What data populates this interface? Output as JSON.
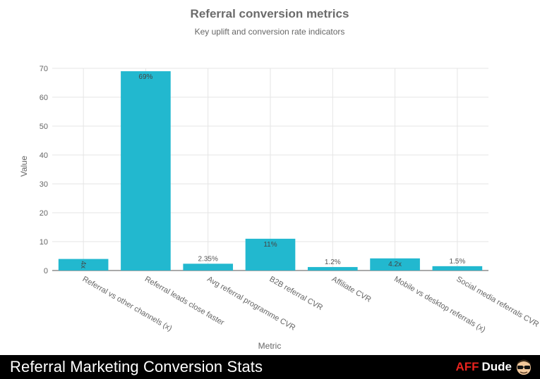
{
  "chart_data": {
    "type": "bar",
    "title": "Referral conversion metrics",
    "subtitle": "Key uplift and conversion rate indicators",
    "xlabel": "Metric",
    "ylabel": "Value",
    "ylim": [
      0,
      70
    ],
    "yticks": [
      0,
      10,
      20,
      30,
      40,
      50,
      60,
      70
    ],
    "grid": true,
    "bar_color": "#22b8cf",
    "categories": [
      "Referral vs other channels (x)",
      "Referral leads close faster",
      "Avg referral programme CVR",
      "B2B referral CVR",
      "Affiliate CVR",
      "Mobile vs desktop referrals (x)",
      "Social media referrals CVR"
    ],
    "values": [
      4,
      69,
      2.35,
      11,
      1.2,
      4.2,
      1.5
    ],
    "data_labels": [
      "4x",
      "69%",
      "2.35%",
      "11%",
      "1.2%",
      "4.2x",
      "1.5%"
    ]
  },
  "footer": {
    "title": "Referral Marketing Conversion Stats",
    "brand_aff": "AFF",
    "brand_dude": "Dude"
  },
  "icons": {
    "brand_logo": "dude-face-icon"
  }
}
